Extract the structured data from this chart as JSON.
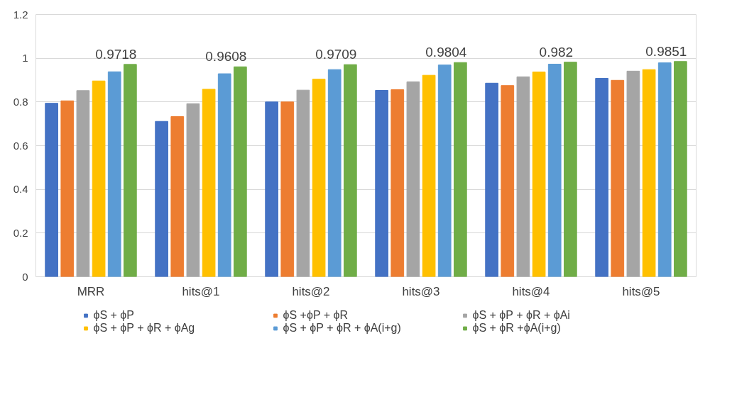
{
  "chart_data": {
    "type": "bar",
    "categories": [
      "MRR",
      "hits@1",
      "hits@2",
      "hits@3",
      "hits@4",
      "hits@5"
    ],
    "series": [
      {
        "name": "ϕS + ϕP",
        "color": "#4472c4",
        "values": [
          0.794,
          0.711,
          0.8,
          0.853,
          0.886,
          0.908
        ]
      },
      {
        "name": "ϕS +ϕP + ϕR",
        "color": "#ed7d31",
        "values": [
          0.805,
          0.733,
          0.8,
          0.856,
          0.875,
          0.899
        ]
      },
      {
        "name": "ϕS + ϕP + ϕR + ϕAi",
        "color": "#a5a5a5",
        "values": [
          0.852,
          0.792,
          0.854,
          0.892,
          0.915,
          0.941
        ]
      },
      {
        "name": "ϕS + ϕP + ϕR + ϕAg",
        "color": "#ffc000",
        "values": [
          0.896,
          0.858,
          0.904,
          0.922,
          0.937,
          0.948
        ]
      },
      {
        "name": "ϕS + ϕP + ϕR + ϕA(i+g)",
        "color": "#5b9bd5",
        "values": [
          0.938,
          0.929,
          0.948,
          0.969,
          0.973,
          0.979
        ]
      },
      {
        "name": "ϕS + ϕR +ϕA(i+g)",
        "color": "#70ad47",
        "values": [
          0.9718,
          0.9608,
          0.9709,
          0.9804,
          0.982,
          0.9851
        ],
        "value_labels": [
          "0.9718",
          "0.9608",
          "0.9709",
          "0.9804",
          "0.982",
          "0.9851"
        ]
      }
    ],
    "ylim": [
      0,
      1.2
    ],
    "yticks": [
      0,
      {
        "value": 0.2,
        "label": "0.2"
      },
      {
        "value": 0.4,
        "label": "0.4"
      },
      {
        "value": 0.6,
        "label": "0.6"
      },
      {
        "value": 0.8,
        "label": "0.8"
      },
      1,
      {
        "value": 1.2,
        "label": "1.2"
      }
    ],
    "grid": "y",
    "legend": "bottom"
  }
}
